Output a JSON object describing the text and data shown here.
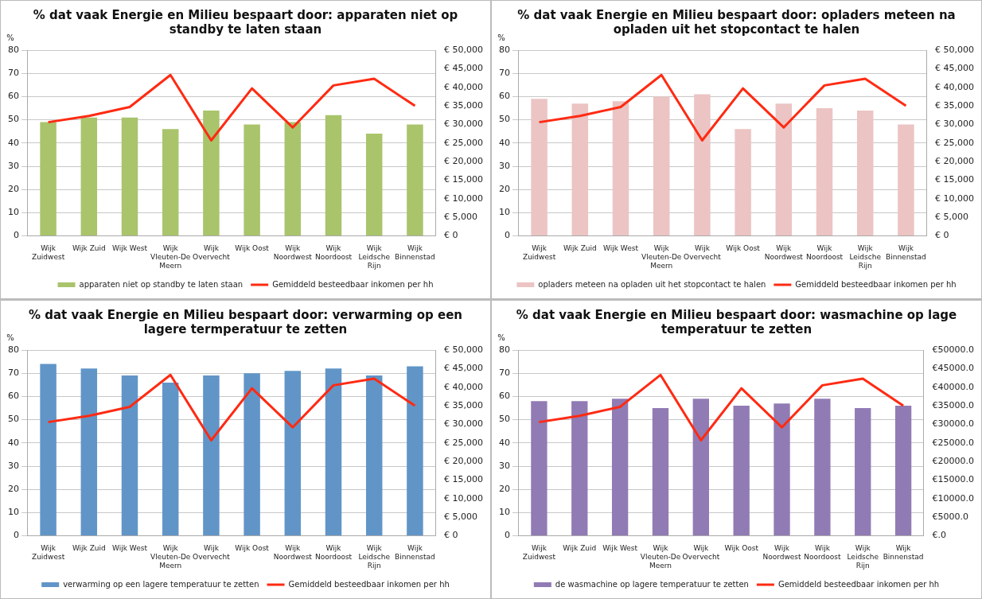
{
  "chart_data": [
    {
      "type": "bar",
      "title": "% dat vaak Energie en Milieu bespaart door: apparaten niet op standby te laten staan",
      "ylabel": "%",
      "categories": [
        "Wijk Zuidwest",
        "Wijk Zuid",
        "Wijk West",
        "Wijk Vleuten-De Meern",
        "Wijk Overvecht",
        "Wijk Oost",
        "Wijk Noordwest",
        "Wijk Noordoost",
        "Wijk Leidsche Rijn",
        "Wijk Binnenstad"
      ],
      "series": [
        {
          "name": "apparaten niet op standby te laten staan",
          "color": "#a9c46b",
          "values": [
            49,
            51,
            51,
            46,
            54,
            48,
            49,
            52,
            44,
            48
          ]
        },
        {
          "name": "Gemiddeld besteedbaar inkomen per hh",
          "type": "line",
          "axis": "y2",
          "color": "#ff2a12",
          "values": [
            30600,
            32300,
            34700,
            43300,
            25700,
            39700,
            29200,
            40500,
            42300,
            35000
          ]
        }
      ],
      "ylim": [
        0,
        80
      ],
      "yticks": [
        0,
        10,
        20,
        30,
        40,
        50,
        60,
        70,
        80
      ],
      "y2lim": [
        0,
        50000
      ],
      "y2ticks": [
        {
          "value": 0,
          "label": "€ 0"
        },
        {
          "value": 5000,
          "label": "€ 5,000"
        },
        {
          "value": 10000,
          "label": "€ 10,000"
        },
        {
          "value": 15000,
          "label": "€ 15,000"
        },
        {
          "value": 20000,
          "label": "€ 20,000"
        },
        {
          "value": 25000,
          "label": "€ 25,000"
        },
        {
          "value": 30000,
          "label": "€ 30,000"
        },
        {
          "value": 35000,
          "label": "€ 35,000"
        },
        {
          "value": 40000,
          "label": "€ 40,000"
        },
        {
          "value": 45000,
          "label": "€ 45,000"
        },
        {
          "value": 50000,
          "label": "€ 50,000"
        }
      ],
      "grid": "y",
      "legend": "bottom",
      "marker": "none"
    },
    {
      "type": "bar",
      "title": "% dat vaak Energie en Milieu bespaart door: opladers meteen na opladen uit het stopcontact te halen",
      "ylabel": "%",
      "categories": [
        "Wijk Zuidwest",
        "Wijk Zuid",
        "Wijk West",
        "Wijk Vleuten-De Meern",
        "Wijk Overvecht",
        "Wijk Oost",
        "Wijk Noordwest",
        "Wijk Noordoost",
        "Wijk Leidsche Rijn",
        "Wijk Binnenstad"
      ],
      "series": [
        {
          "name": "opladers meteen na opladen uit het stopcontact te halen",
          "color": "#ebc4c3",
          "values": [
            59,
            57,
            58,
            60,
            61,
            46,
            57,
            55,
            54,
            48
          ]
        },
        {
          "name": "Gemiddeld besteedbaar inkomen per hh",
          "type": "line",
          "axis": "y2",
          "color": "#ff2a12",
          "values": [
            30600,
            32300,
            34700,
            43300,
            25700,
            39700,
            29200,
            40500,
            42300,
            35000
          ]
        }
      ],
      "ylim": [
        0,
        80
      ],
      "yticks": [
        0,
        10,
        20,
        30,
        40,
        50,
        60,
        70,
        80
      ],
      "y2lim": [
        0,
        50000
      ],
      "y2ticks": [
        {
          "value": 0,
          "label": "€ 0"
        },
        {
          "value": 5000,
          "label": "€ 5,000"
        },
        {
          "value": 10000,
          "label": "€ 10,000"
        },
        {
          "value": 15000,
          "label": "€ 15,000"
        },
        {
          "value": 20000,
          "label": "€ 20,000"
        },
        {
          "value": 25000,
          "label": "€ 25,000"
        },
        {
          "value": 30000,
          "label": "€ 30,000"
        },
        {
          "value": 35000,
          "label": "€ 35,000"
        },
        {
          "value": 40000,
          "label": "€ 40,000"
        },
        {
          "value": 45000,
          "label": "€ 45,000"
        },
        {
          "value": 50000,
          "label": "€ 50,000"
        }
      ],
      "grid": "y",
      "legend": "bottom",
      "marker": "none"
    },
    {
      "type": "bar",
      "title": "% dat vaak Energie en Milieu bespaart door: verwarming op een lagere termperatuur te zetten",
      "ylabel": "%",
      "categories": [
        "Wijk Zuidwest",
        "Wijk Zuid",
        "Wijk West",
        "Wijk Vleuten-De Meern",
        "Wijk Overvecht",
        "Wijk Oost",
        "Wijk Noordwest",
        "Wijk Noordoost",
        "Wijk Leidsche Rijn",
        "Wijk Binnenstad"
      ],
      "series": [
        {
          "name": "verwarming op een lagere temperatuur te zetten",
          "color": "#6195c8",
          "values": [
            74,
            72,
            69,
            66,
            69,
            70,
            71,
            72,
            69,
            73
          ]
        },
        {
          "name": "Gemiddeld besteedbaar inkomen per hh",
          "type": "line",
          "axis": "y2",
          "color": "#ff2a12",
          "values": [
            30600,
            32300,
            34700,
            43300,
            25700,
            39700,
            29200,
            40500,
            42300,
            35000
          ]
        }
      ],
      "ylim": [
        0,
        80
      ],
      "yticks": [
        0,
        10,
        20,
        30,
        40,
        50,
        60,
        70,
        80
      ],
      "y2lim": [
        0,
        50000
      ],
      "y2ticks": [
        {
          "value": 0,
          "label": "€ 0"
        },
        {
          "value": 5000,
          "label": "€ 5,000"
        },
        {
          "value": 10000,
          "label": "€ 10,000"
        },
        {
          "value": 15000,
          "label": "€ 15,000"
        },
        {
          "value": 20000,
          "label": "€ 20,000"
        },
        {
          "value": 25000,
          "label": "€ 25,000"
        },
        {
          "value": 30000,
          "label": "€ 30,000"
        },
        {
          "value": 35000,
          "label": "€ 35,000"
        },
        {
          "value": 40000,
          "label": "€ 40,000"
        },
        {
          "value": 45000,
          "label": "€ 45,000"
        },
        {
          "value": 50000,
          "label": "€ 50,000"
        }
      ],
      "grid": "y",
      "legend": "bottom",
      "marker": "none"
    },
    {
      "type": "bar",
      "title": "% dat vaak Energie en Milieu bespaart door: wasmachine op lage temperatuur te zetten",
      "ylabel": "%",
      "categories": [
        "Wijk Zuidwest",
        "Wijk Zuid",
        "Wijk West",
        "Wijk Vleuten-De Meern",
        "Wijk Overvecht",
        "Wijk Oost",
        "Wijk Noordwest",
        "Wijk Noordoost",
        "Wijk Leidsche Rijn",
        "Wijk Binnenstad"
      ],
      "series": [
        {
          "name": "de wasmachine op lagere temperatuur te zetten",
          "color": "#917bb4",
          "values": [
            58,
            58,
            59,
            55,
            59,
            56,
            57,
            59,
            55,
            56
          ]
        },
        {
          "name": "Gemiddeld besteedbaar inkomen per hh",
          "type": "line",
          "axis": "y2",
          "color": "#ff2a12",
          "values": [
            30600,
            32300,
            34700,
            43300,
            25700,
            39700,
            29200,
            40500,
            42300,
            35000
          ]
        }
      ],
      "ylim": [
        0,
        80
      ],
      "yticks": [
        0,
        10,
        20,
        30,
        40,
        50,
        60,
        70,
        80
      ],
      "y2lim": [
        0,
        50000
      ],
      "y2ticks": [
        {
          "value": 0,
          "label": "€.0"
        },
        {
          "value": 5000,
          "label": "€5000.0"
        },
        {
          "value": 10000,
          "label": "€10000.0"
        },
        {
          "value": 15000,
          "label": "€15000.0"
        },
        {
          "value": 20000,
          "label": "€20000.0"
        },
        {
          "value": 25000,
          "label": "€25000.0"
        },
        {
          "value": 30000,
          "label": "€30000.0"
        },
        {
          "value": 35000,
          "label": "€35000.0"
        },
        {
          "value": 40000,
          "label": "€40000.0"
        },
        {
          "value": 45000,
          "label": "€45000.0"
        },
        {
          "value": 50000,
          "label": "€50000.0"
        }
      ],
      "grid": "y",
      "legend": "bottom",
      "marker": "none"
    }
  ]
}
